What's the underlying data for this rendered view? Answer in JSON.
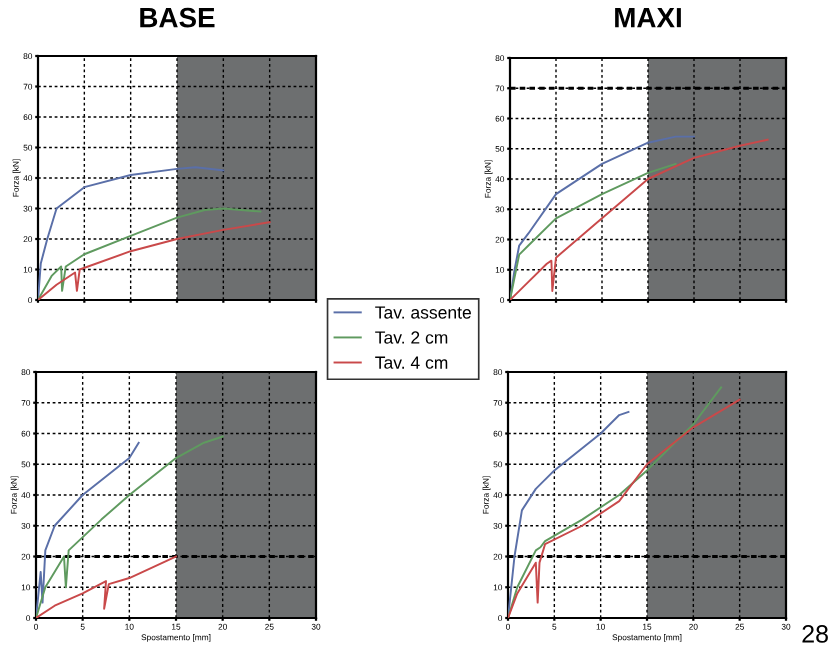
{
  "chart_data": [
    {
      "type": "line",
      "title": "BASE",
      "ylabel": "Forza [kN]",
      "xlim": [
        0,
        30
      ],
      "ylim": [
        0,
        80
      ],
      "xticks": [
        0,
        5,
        10,
        15,
        20,
        25,
        30
      ],
      "yticks": [
        0,
        10,
        20,
        30,
        40,
        50,
        60,
        70,
        80
      ],
      "grid": true,
      "tick_labels": "y",
      "legend": "bottom right",
      "bands": [
        {
          "axis": "x",
          "from": 15,
          "to": 30,
          "color": "#6d6f70"
        }
      ],
      "series": [
        {
          "name": "Tav. assente",
          "color": "#5a6fa8",
          "x": [
            0,
            0.3,
            1,
            2,
            5,
            10,
            15,
            17,
            20
          ],
          "values": [
            0,
            12,
            20,
            30,
            37,
            41,
            43,
            43.5,
            42.5
          ]
        },
        {
          "name": "Tav. 2 cm",
          "color": "#5f9a5f",
          "x": [
            0,
            1.5,
            2.5,
            2.6,
            3,
            5,
            10,
            15,
            18,
            20,
            24
          ],
          "values": [
            0,
            8,
            11,
            3,
            11,
            15,
            21,
            27,
            29.5,
            30,
            29
          ]
        },
        {
          "name": "Tav. 4 cm",
          "color": "#c9494a",
          "x": [
            0,
            2,
            4,
            4.2,
            4.5,
            10,
            15,
            20,
            25
          ],
          "values": [
            0,
            5,
            9,
            3,
            10,
            16,
            20,
            23,
            25.5
          ]
        }
      ]
    },
    {
      "type": "line",
      "title": "MAXI",
      "xlim": [
        0,
        30
      ],
      "ylim": [
        0,
        80
      ],
      "xticks": [
        0,
        5,
        10,
        15,
        20,
        25,
        30
      ],
      "yticks": [
        0,
        10,
        20,
        30,
        40,
        50,
        60,
        70,
        80
      ],
      "grid": true,
      "tick_labels": "y",
      "ylabel": "Forza [kN]",
      "ref_lines": [
        {
          "axis": "y",
          "value": 70
        }
      ],
      "bands": [
        {
          "axis": "x",
          "from": 15,
          "to": 30,
          "color": "#6d6f70"
        }
      ],
      "series": [
        {
          "color": "#5a6fa8",
          "x": [
            0,
            0.5,
            1,
            2,
            5,
            10,
            15,
            18,
            20
          ],
          "values": [
            0,
            10,
            18,
            22,
            35,
            45,
            52,
            54,
            54
          ]
        },
        {
          "color": "#5f9a5f",
          "x": [
            0,
            1,
            2,
            5,
            10,
            15,
            18
          ],
          "values": [
            0,
            15,
            18,
            27,
            35,
            42,
            45
          ]
        },
        {
          "color": "#c9494a",
          "x": [
            0,
            2,
            4,
            4.5,
            4.6,
            5,
            10,
            15,
            20,
            25,
            28
          ],
          "values": [
            0,
            6,
            12,
            13,
            3,
            14,
            27,
            40,
            47,
            51,
            53
          ]
        }
      ]
    },
    {
      "type": "line",
      "xlabel": "Spostamento [mm]",
      "ylabel": "Forza [kN]",
      "xlim": [
        0,
        30
      ],
      "ylim": [
        0,
        80
      ],
      "xticks": [
        0,
        5,
        10,
        15,
        20,
        25,
        30
      ],
      "yticks": [
        0,
        10,
        20,
        30,
        40,
        50,
        60,
        70,
        80
      ],
      "grid": true,
      "ref_lines": [
        {
          "axis": "y",
          "value": 20
        }
      ],
      "bands": [
        {
          "axis": "x",
          "from": 15,
          "to": 30,
          "color": "#6d6f70"
        }
      ],
      "series": [
        {
          "color": "#5a6fa8",
          "x": [
            0,
            0.5,
            0.7,
            1,
            2,
            5,
            10,
            11
          ],
          "values": [
            0,
            15,
            5,
            22,
            30,
            40,
            52,
            57
          ]
        },
        {
          "color": "#5f9a5f",
          "x": [
            0,
            1,
            3,
            3.2,
            3.5,
            7,
            10,
            15,
            18,
            20
          ],
          "values": [
            0,
            10,
            20,
            10,
            22,
            32,
            40,
            52,
            57,
            59
          ]
        },
        {
          "color": "#c9494a",
          "x": [
            0,
            2,
            5,
            7.5,
            7.3,
            7.8,
            10,
            15
          ],
          "values": [
            0,
            4,
            8,
            12,
            3,
            11,
            13,
            20
          ]
        }
      ]
    },
    {
      "type": "line",
      "xlabel": "Spostamento [mm]",
      "ylabel": "Forza [kN]",
      "xlim": [
        0,
        30
      ],
      "ylim": [
        0,
        80
      ],
      "xticks": [
        0,
        5,
        10,
        15,
        20,
        25,
        30
      ],
      "yticks": [
        0,
        10,
        20,
        30,
        40,
        50,
        60,
        70,
        80
      ],
      "grid": true,
      "ref_lines": [
        {
          "axis": "y",
          "value": 20
        }
      ],
      "bands": [
        {
          "axis": "x",
          "from": 15,
          "to": 30,
          "color": "#6d6f70"
        }
      ],
      "annotations": [
        "28"
      ],
      "series": [
        {
          "color": "#5a6fa8",
          "x": [
            0,
            0.7,
            1.5,
            3,
            5,
            10,
            12,
            13
          ],
          "values": [
            0,
            20,
            35,
            42,
            48,
            60,
            66,
            67
          ]
        },
        {
          "color": "#5f9a5f",
          "x": [
            0,
            1,
            3,
            3.5,
            4,
            8,
            12,
            15,
            20,
            23
          ],
          "values": [
            0,
            10,
            22,
            23,
            25,
            32,
            40,
            48,
            63,
            75
          ]
        },
        {
          "color": "#c9494a",
          "x": [
            0,
            1,
            3,
            3.2,
            3.4,
            4,
            8,
            12,
            15,
            20,
            25
          ],
          "values": [
            0,
            8,
            18,
            5,
            18,
            24,
            30,
            38,
            50,
            62,
            71
          ]
        }
      ]
    }
  ]
}
